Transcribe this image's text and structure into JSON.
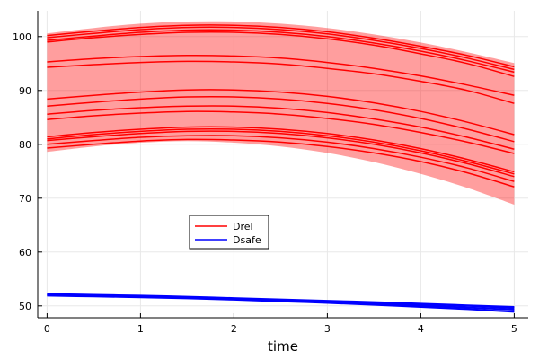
{
  "chart_data": {
    "type": "line",
    "xlabel": "time",
    "ylabel": "",
    "title": "",
    "xlim": [
      -0.1,
      5.15
    ],
    "ylim": [
      47.8,
      104.8
    ],
    "xticks": [
      0,
      1,
      2,
      3,
      4,
      5
    ],
    "yticks": [
      50,
      60,
      70,
      80,
      90,
      100
    ],
    "grid": true,
    "legend": {
      "placement": "center-left",
      "entries": [
        {
          "label": "Drel",
          "color": "#ff0000"
        },
        {
          "label": "Dsafe",
          "color": "#0000ff"
        }
      ]
    },
    "x": [
      0,
      0.5,
      1,
      1.5,
      2,
      2.5,
      3,
      3.5,
      4,
      4.5,
      5
    ],
    "band": {
      "color": "#ff0000",
      "opacity": 0.38,
      "lower": [
        78.6,
        79.6,
        80.3,
        80.6,
        80.3,
        79.6,
        78.4,
        76.7,
        74.5,
        71.9,
        68.8
      ],
      "upper": [
        100.6,
        101.6,
        102.4,
        102.8,
        102.8,
        102.4,
        101.6,
        100.4,
        98.9,
        97.1,
        95.1
      ]
    },
    "series": [
      {
        "group": "Drel",
        "color": "#ff0000",
        "values": [
          100.2,
          101.0,
          101.7,
          102.1,
          102.1,
          101.7,
          100.9,
          99.7,
          98.2,
          96.5,
          94.4
        ]
      },
      {
        "group": "Drel",
        "color": "#ff0000",
        "values": [
          99.8,
          100.6,
          101.3,
          101.7,
          101.7,
          101.3,
          100.5,
          99.3,
          97.8,
          96.0,
          93.9
        ]
      },
      {
        "group": "Drel",
        "color": "#ff0000",
        "values": [
          99.3,
          100.1,
          100.8,
          101.2,
          101.2,
          100.8,
          100.0,
          98.8,
          97.3,
          95.5,
          93.4
        ]
      },
      {
        "group": "Drel",
        "color": "#ff0000",
        "values": [
          99.0,
          99.8,
          100.4,
          100.8,
          100.8,
          100.4,
          99.6,
          98.4,
          96.8,
          95.0,
          92.6
        ]
      },
      {
        "group": "Drel",
        "color": "#ff0000",
        "values": [
          95.3,
          95.9,
          96.3,
          96.5,
          96.4,
          96.0,
          95.2,
          94.1,
          92.7,
          91.0,
          89.1
        ]
      },
      {
        "group": "Drel",
        "color": "#ff0000",
        "values": [
          94.3,
          94.8,
          95.2,
          95.4,
          95.3,
          94.9,
          94.1,
          93.1,
          91.7,
          90.0,
          87.6
        ]
      },
      {
        "group": "Drel",
        "color": "#ff0000",
        "values": [
          88.4,
          89.1,
          89.7,
          90.1,
          90.1,
          89.7,
          88.9,
          87.7,
          86.1,
          84.1,
          81.8
        ]
      },
      {
        "group": "Drel",
        "color": "#ff0000",
        "values": [
          87.1,
          87.8,
          88.4,
          88.8,
          88.8,
          88.4,
          87.6,
          86.4,
          84.8,
          82.8,
          80.5
        ]
      },
      {
        "group": "Drel",
        "color": "#ff0000",
        "values": [
          85.6,
          86.3,
          86.8,
          87.1,
          87.1,
          86.7,
          85.9,
          84.7,
          83.2,
          81.3,
          79.1
        ]
      },
      {
        "group": "Drel",
        "color": "#ff0000",
        "values": [
          84.6,
          85.3,
          85.8,
          86.1,
          86.0,
          85.6,
          84.8,
          83.7,
          82.2,
          80.4,
          78.3
        ]
      },
      {
        "group": "Drel",
        "color": "#ff0000",
        "values": [
          81.4,
          82.2,
          82.8,
          83.2,
          83.2,
          82.8,
          82.0,
          80.8,
          79.2,
          77.2,
          74.9
        ]
      },
      {
        "group": "Drel",
        "color": "#ff0000",
        "values": [
          81.0,
          81.8,
          82.4,
          82.8,
          82.8,
          82.4,
          81.6,
          80.4,
          78.8,
          76.8,
          74.5
        ]
      },
      {
        "group": "Drel",
        "color": "#ff0000",
        "values": [
          80.7,
          81.4,
          82.0,
          82.4,
          82.4,
          82.0,
          81.2,
          80.0,
          78.4,
          76.4,
          74.0
        ]
      },
      {
        "group": "Drel",
        "color": "#ff0000",
        "values": [
          80.0,
          80.7,
          81.3,
          81.6,
          81.6,
          81.2,
          80.4,
          79.2,
          77.6,
          75.6,
          73.1
        ]
      },
      {
        "group": "Drel",
        "color": "#ff0000",
        "values": [
          79.3,
          80.0,
          80.6,
          80.9,
          80.8,
          80.4,
          79.6,
          78.4,
          76.8,
          74.7,
          72.1
        ]
      },
      {
        "group": "Dsafe",
        "color": "#0000ff",
        "values": [
          52.2,
          52.05,
          51.9,
          51.7,
          51.45,
          51.2,
          50.95,
          50.7,
          50.4,
          50.1,
          49.8
        ]
      },
      {
        "group": "Dsafe",
        "color": "#0000ff",
        "values": [
          52.1,
          51.95,
          51.8,
          51.6,
          51.35,
          51.1,
          50.85,
          50.6,
          50.3,
          50.0,
          49.6
        ]
      },
      {
        "group": "Dsafe",
        "color": "#0000ff",
        "values": [
          52.0,
          51.85,
          51.7,
          51.5,
          51.25,
          51.0,
          50.7,
          50.4,
          50.05,
          49.7,
          49.3
        ]
      },
      {
        "group": "Dsafe",
        "color": "#0000ff",
        "values": [
          51.9,
          51.75,
          51.6,
          51.4,
          51.15,
          50.85,
          50.55,
          50.2,
          49.8,
          49.4,
          48.9
        ]
      }
    ]
  }
}
